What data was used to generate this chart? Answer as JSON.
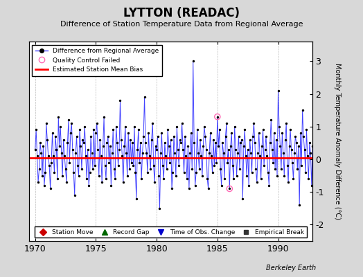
{
  "title": "LYTTON (READAC)",
  "subtitle": "Difference of Station Temperature Data from Regional Average",
  "ylabel": "Monthly Temperature Anomaly Difference (°C)",
  "xlabel_year_start": 1970,
  "xlim": [
    1969.5,
    1992.8
  ],
  "ylim": [
    -2.5,
    3.6
  ],
  "yticks": [
    -2,
    -1,
    0,
    1,
    2,
    3
  ],
  "xticks": [
    1970,
    1975,
    1980,
    1985,
    1990
  ],
  "bias_level": 0.05,
  "bias_color": "#ff0000",
  "line_color": "#4444ff",
  "dot_color": "#000000",
  "qc_fail_indices": [
    180,
    192
  ],
  "qc_fail_color": "#ff69b4",
  "background_color": "#d8d8d8",
  "plot_bg_color": "#ffffff",
  "grid_color": "#aaaaaa",
  "watermark": "Berkeley Earth",
  "legend2_entries": [
    {
      "label": "Station Move",
      "color": "#cc0000",
      "marker": "D"
    },
    {
      "label": "Record Gap",
      "color": "#006600",
      "marker": "^"
    },
    {
      "label": "Time of Obs. Change",
      "color": "#0000cc",
      "marker": "v"
    },
    {
      "label": "Empirical Break",
      "color": "#333333",
      "marker": "s"
    }
  ],
  "data": [
    0.3,
    0.9,
    0.1,
    -0.7,
    -0.3,
    0.5,
    0.2,
    -0.5,
    0.4,
    -0.8,
    -0.4,
    1.1,
    0.6,
    0.1,
    -0.2,
    -0.9,
    -0.1,
    0.8,
    0.1,
    -0.4,
    0.7,
    0.3,
    -0.6,
    1.3,
    0.4,
    1.0,
    0.2,
    -0.5,
    0.6,
    0.1,
    -0.3,
    -0.7,
    0.5,
    1.2,
    -0.1,
    0.8,
    1.1,
    0.3,
    -0.4,
    -1.1,
    0.2,
    0.7,
    -0.2,
    -0.5,
    0.9,
    0.4,
    -0.3,
    0.6,
    0.5,
    1.0,
    0.1,
    -0.6,
    0.3,
    -0.8,
    -0.4,
    0.7,
    0.2,
    -0.3,
    0.9,
    -0.2,
    0.8,
    1.1,
    0.3,
    -0.5,
    0.6,
    0.1,
    -0.7,
    0.4,
    1.3,
    -0.2,
    -0.6,
    0.5,
    0.7,
    -0.1,
    0.4,
    -0.8,
    0.2,
    0.9,
    -0.3,
    -0.6,
    1.0,
    0.5,
    -0.2,
    0.3,
    1.8,
    0.6,
    0.1,
    -0.7,
    0.4,
    1.0,
    0.2,
    -0.5,
    0.8,
    -0.3,
    0.6,
    -0.1,
    0.5,
    -0.2,
    1.0,
    -0.4,
    -1.2,
    0.3,
    0.9,
    -0.1,
    0.5,
    -0.6,
    0.2,
    0.7,
    1.9,
    0.5,
    0.2,
    -0.4,
    0.8,
    0.1,
    -0.3,
    0.6,
    1.1,
    -0.2,
    -0.7,
    0.4,
    0.3,
    0.7,
    -0.5,
    -1.5,
    0.2,
    0.8,
    -0.2,
    -0.6,
    0.5,
    0.1,
    -0.3,
    0.9,
    0.4,
    -0.1,
    0.6,
    -0.9,
    -0.4,
    0.7,
    0.2,
    -0.5,
    1.0,
    0.3,
    -0.2,
    0.6,
    0.5,
    1.1,
    0.3,
    -0.4,
    0.7,
    0.1,
    -0.6,
    0.4,
    -0.9,
    0.2,
    0.8,
    -0.3,
    3.0,
    0.5,
    -0.8,
    -0.4,
    0.9,
    0.2,
    -0.3,
    0.6,
    0.1,
    -0.5,
    0.4,
    1.0,
    0.7,
    0.3,
    -0.6,
    -0.9,
    0.2,
    0.8,
    0.1,
    -0.4,
    0.6,
    -0.2,
    0.5,
    -0.1,
    1.3,
    0.4,
    0.9,
    -0.3,
    -0.8,
    0.5,
    0.2,
    -0.6,
    0.7,
    1.1,
    -0.1,
    0.3,
    -0.9,
    0.4,
    0.8,
    -0.2,
    -0.6,
    1.0,
    0.3,
    -0.5,
    0.2,
    0.7,
    -0.3,
    0.5,
    0.6,
    -1.2,
    0.4,
    0.9,
    0.1,
    -0.5,
    0.3,
    -0.8,
    0.6,
    0.2,
    -0.4,
    0.7,
    1.1,
    0.5,
    -0.3,
    -0.7,
    0.2,
    0.8,
    0.1,
    -0.6,
    0.4,
    0.9,
    -0.2,
    0.3,
    0.7,
    0.1,
    -0.4,
    -0.8,
    0.5,
    1.2,
    0.3,
    -0.1,
    0.8,
    -0.3,
    0.6,
    -0.5,
    2.1,
    1.0,
    0.4,
    -0.3,
    0.8,
    0.2,
    -0.5,
    0.6,
    1.1,
    -0.2,
    -0.7,
    0.4,
    0.9,
    0.3,
    -0.1,
    -0.6,
    0.2,
    0.7,
    0.5,
    -0.3,
    0.4,
    -1.4,
    0.8,
    -0.2,
    1.5,
    0.7,
    0.3,
    -0.4,
    0.9,
    0.1,
    -0.6,
    0.5,
    0.2,
    -0.8,
    0.4,
    -0.3
  ]
}
